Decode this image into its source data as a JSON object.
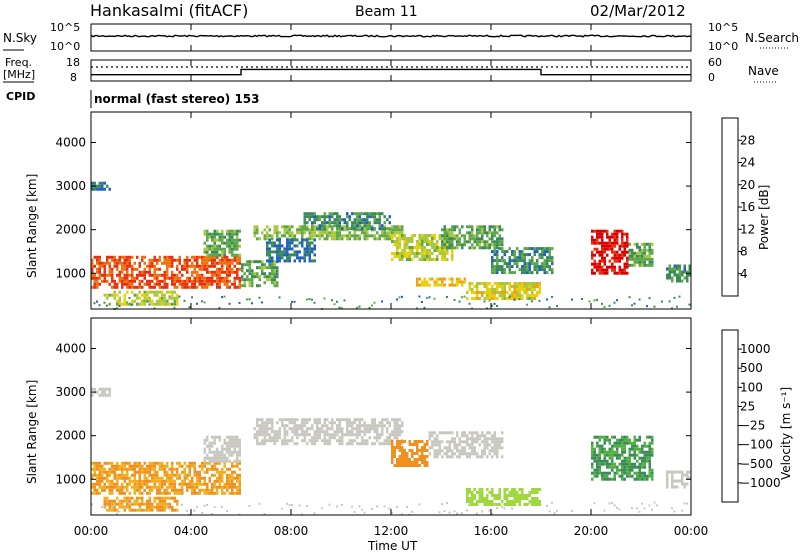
{
  "header": {
    "station": "Hankasalmi (fitACF)",
    "beam": "Beam 11",
    "date": "02/Mar/2012"
  },
  "params": {
    "nsky_label": "N.Sky",
    "nsearch_label": "N.Search",
    "freq_label_1": "Freq.",
    "freq_label_2": "[MHz]",
    "nave_label": "Nave",
    "cpid_label": "CPID",
    "cpid_text": "normal (fast stereo) 153",
    "nsky_ticks": [
      "10^5",
      "10^0"
    ],
    "nsearch_ticks": [
      "10^5",
      "10^0"
    ],
    "freq_ticks": [
      "18",
      "8"
    ],
    "nave_ticks": [
      "60",
      "0"
    ],
    "freq_steps": [
      {
        "start_h": 0,
        "end_h": 6,
        "level": 0.3
      },
      {
        "start_h": 6,
        "end_h": 18,
        "level": 0.55
      },
      {
        "start_h": 18,
        "end_h": 24,
        "level": 0.3
      }
    ]
  },
  "axes": {
    "time_ticks": [
      "00:00",
      "04:00",
      "08:00",
      "12:00",
      "16:00",
      "20:00",
      "00:00"
    ],
    "time_values_h": [
      0,
      4,
      8,
      12,
      16,
      20,
      24
    ],
    "xlabel": "Time UT",
    "range_ylabel": "Slant Range [km]",
    "range_ticks": [
      1000,
      2000,
      3000,
      4000
    ],
    "range_lim": [
      180,
      4700
    ]
  },
  "chart_data": [
    {
      "type": "heatmap",
      "panel": "power",
      "xlabel": "Time UT",
      "ylabel": "Slant Range [km]",
      "xlim_h": [
        0,
        24
      ],
      "ylim_km": [
        180,
        4700
      ],
      "colorbar": {
        "label": "Power [dB]",
        "ticks": [
          "4",
          "8",
          "12",
          "16",
          "20",
          "24",
          "28"
        ],
        "range": [
          0,
          30
        ],
        "colors": [
          "#1020d0",
          "#2060c0",
          "#3a8a5a",
          "#5fa84a",
          "#a8c840",
          "#e8d010",
          "#f0a010",
          "#f07010",
          "#e83010",
          "#d80000"
        ]
      },
      "echo_regions": [
        {
          "t0": 0.0,
          "t1": 6.0,
          "r0": 700,
          "r1": 1400,
          "value": 24
        },
        {
          "t0": 0.5,
          "t1": 3.5,
          "r0": 300,
          "r1": 600,
          "value": 14
        },
        {
          "t0": 4.5,
          "t1": 6.0,
          "r0": 1400,
          "r1": 2000,
          "value": 10
        },
        {
          "t0": 6.0,
          "t1": 7.5,
          "r0": 700,
          "r1": 1300,
          "value": 10
        },
        {
          "t0": 6.5,
          "t1": 12.5,
          "r0": 1800,
          "r1": 2100,
          "value": 12
        },
        {
          "t0": 7.0,
          "t1": 9.0,
          "r0": 1300,
          "r1": 1800,
          "value": 6
        },
        {
          "t0": 8.5,
          "t1": 12.0,
          "r0": 2000,
          "r1": 2400,
          "value": 8
        },
        {
          "t0": 12.0,
          "t1": 14.5,
          "r0": 1300,
          "r1": 1900,
          "value": 14
        },
        {
          "t0": 13.0,
          "t1": 15.0,
          "r0": 700,
          "r1": 900,
          "value": 18
        },
        {
          "t0": 14.0,
          "t1": 16.5,
          "r0": 1600,
          "r1": 2100,
          "value": 10
        },
        {
          "t0": 15.0,
          "t1": 18.0,
          "r0": 450,
          "r1": 800,
          "value": 16
        },
        {
          "t0": 16.0,
          "t1": 18.5,
          "r0": 1000,
          "r1": 1600,
          "value": 8
        },
        {
          "t0": 20.0,
          "t1": 21.5,
          "r0": 1000,
          "r1": 2000,
          "value": 28
        },
        {
          "t0": 21.5,
          "t1": 22.5,
          "r0": 1200,
          "r1": 1700,
          "value": 10
        },
        {
          "t0": 23.0,
          "t1": 24.0,
          "r0": 800,
          "r1": 1200,
          "value": 8
        },
        {
          "t0": 0.0,
          "t1": 0.8,
          "r0": 2900,
          "r1": 3100,
          "value": 6
        }
      ]
    },
    {
      "type": "heatmap",
      "panel": "velocity",
      "xlabel": "Time UT",
      "ylabel": "Slant Range [km]",
      "xlim_h": [
        0,
        24
      ],
      "ylim_km": [
        180,
        4700
      ],
      "colorbar": {
        "label": "Velocity [m s⁻¹]",
        "ticks": [
          "1000",
          "500",
          "100",
          "25",
          "−25",
          "−100",
          "−500",
          "−1000"
        ],
        "colors": [
          "#1838c0",
          "#3070b0",
          "#3a8a5a",
          "#50b040",
          "#a0d840",
          "#c8c8c0",
          "#f0b020",
          "#f09020",
          "#f05010",
          "#e01010"
        ]
      },
      "echo_regions": [
        {
          "t0": 0.0,
          "t1": 6.0,
          "r0": 700,
          "r1": 1400,
          "value": -100
        },
        {
          "t0": 0.5,
          "t1": 3.5,
          "r0": 300,
          "r1": 600,
          "value": -100
        },
        {
          "t0": 4.5,
          "t1": 6.0,
          "r0": 1400,
          "r1": 2000,
          "value": 0
        },
        {
          "t0": 6.5,
          "t1": 12.5,
          "r0": 1800,
          "r1": 2400,
          "value": 0
        },
        {
          "t0": 12.0,
          "t1": 13.5,
          "r0": 1300,
          "r1": 1900,
          "value": -200
        },
        {
          "t0": 13.5,
          "t1": 16.5,
          "r0": 1500,
          "r1": 2100,
          "value": 0
        },
        {
          "t0": 15.0,
          "t1": 18.0,
          "r0": 450,
          "r1": 800,
          "value": 60
        },
        {
          "t0": 20.0,
          "t1": 22.5,
          "r0": 1000,
          "r1": 2000,
          "value": 300
        },
        {
          "t0": 23.0,
          "t1": 24.0,
          "r0": 800,
          "r1": 1200,
          "value": 0
        },
        {
          "t0": 0.0,
          "t1": 0.8,
          "r0": 2900,
          "r1": 3100,
          "value": 0
        }
      ]
    }
  ]
}
